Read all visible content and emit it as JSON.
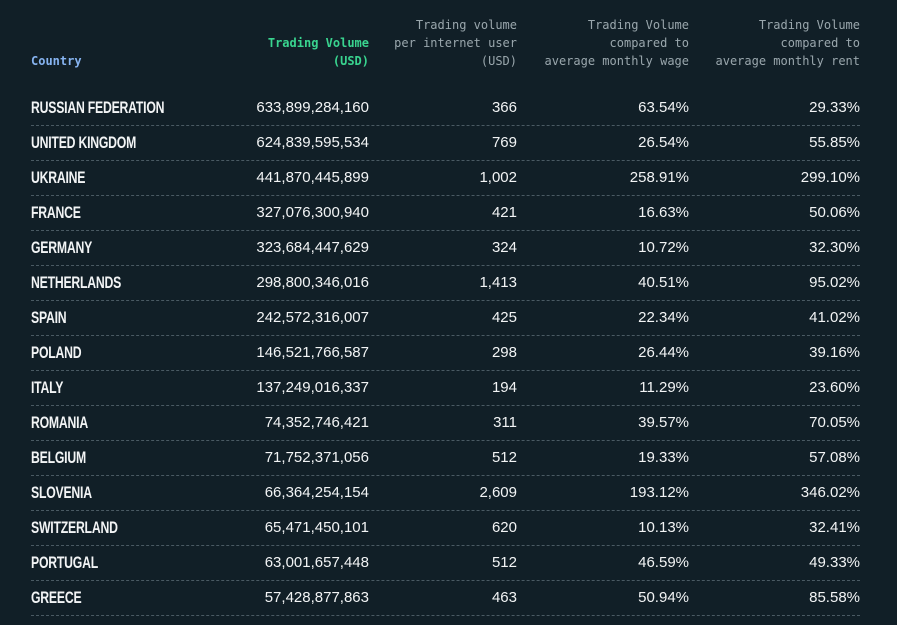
{
  "table": {
    "headers": [
      [
        "Country"
      ],
      [
        "Trading Volume",
        "(USD)"
      ],
      [
        "Trading volume",
        "per internet user",
        "(USD)"
      ],
      [
        "Trading Volume",
        "compared to",
        "average monthly wage"
      ],
      [
        "Trading Volume",
        "compared to",
        "average monthly rent"
      ]
    ],
    "rows": [
      [
        "RUSSIAN FEDERATION",
        "633,899,284,160",
        "366",
        "63.54%",
        "29.33%"
      ],
      [
        "UNITED KINGDOM",
        "624,839,595,534",
        "769",
        "26.54%",
        "55.85%"
      ],
      [
        "UKRAINE",
        "441,870,445,899",
        "1,002",
        "258.91%",
        "299.10%"
      ],
      [
        "FRANCE",
        "327,076,300,940",
        "421",
        "16.63%",
        "50.06%"
      ],
      [
        "GERMANY",
        "323,684,447,629",
        "324",
        "10.72%",
        "32.30%"
      ],
      [
        "NETHERLANDS",
        "298,800,346,016",
        "1,413",
        "40.51%",
        "95.02%"
      ],
      [
        "SPAIN",
        "242,572,316,007",
        "425",
        "22.34%",
        "41.02%"
      ],
      [
        "POLAND",
        "146,521,766,587",
        "298",
        "26.44%",
        "39.16%"
      ],
      [
        "ITALY",
        "137,249,016,337",
        "194",
        "11.29%",
        "23.60%"
      ],
      [
        "ROMANIA",
        "74,352,746,421",
        "311",
        "39.57%",
        "70.05%"
      ],
      [
        "BELGIUM",
        "71,752,371,056",
        "512",
        "19.33%",
        "57.08%"
      ],
      [
        "SLOVENIA",
        "66,364,254,154",
        "2,609",
        "193.12%",
        "346.02%"
      ],
      [
        "SWITZERLAND",
        "65,471,450,101",
        "620",
        "10.13%",
        "32.41%"
      ],
      [
        "PORTUGAL",
        "63,001,657,448",
        "512",
        "46.59%",
        "49.33%"
      ],
      [
        "GREECE",
        "57,428,877,863",
        "463",
        "50.94%",
        "85.58%"
      ]
    ]
  }
}
